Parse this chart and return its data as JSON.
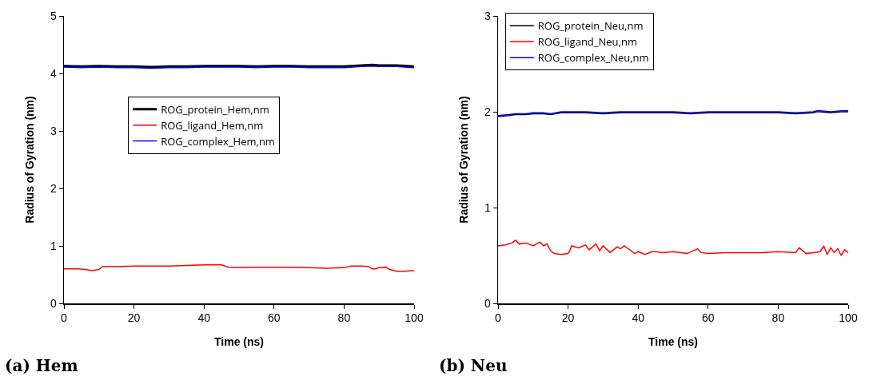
{
  "chart_data": [
    {
      "type": "line",
      "xlabel": "Time (ns)",
      "ylabel": "Radius of Gyration (nm)",
      "xlim": [
        0,
        100
      ],
      "xticks": [
        0,
        20,
        40,
        60,
        80,
        100
      ],
      "ylim": [
        0,
        5
      ],
      "yticks": [
        0,
        1,
        2,
        3,
        4,
        5
      ],
      "grid": false,
      "legend": "center",
      "marker": "none",
      "line_style": "solid",
      "annotations": [
        "(a) Hem"
      ],
      "series": [
        {
          "name": "ROG_protein_Hem,nm",
          "color": "#000000",
          "x": [
            0,
            5,
            10,
            15,
            20,
            25,
            30,
            35,
            40,
            45,
            50,
            55,
            60,
            65,
            70,
            75,
            80,
            85,
            88,
            90,
            95,
            100
          ],
          "values": [
            4.13,
            4.12,
            4.13,
            4.12,
            4.12,
            4.11,
            4.12,
            4.12,
            4.13,
            4.13,
            4.13,
            4.12,
            4.13,
            4.13,
            4.12,
            4.12,
            4.12,
            4.14,
            4.15,
            4.14,
            4.14,
            4.12
          ]
        },
        {
          "name": "ROG_ligand_Hem,nm",
          "color": "#ff0000",
          "x": [
            0,
            4,
            6,
            8,
            10,
            11,
            15,
            20,
            25,
            30,
            35,
            40,
            45,
            47,
            50,
            55,
            60,
            65,
            70,
            75,
            80,
            82,
            85,
            87,
            88,
            89,
            90,
            92,
            93,
            95,
            97,
            100
          ],
          "values": [
            0.6,
            0.6,
            0.59,
            0.57,
            0.59,
            0.64,
            0.64,
            0.65,
            0.65,
            0.65,
            0.66,
            0.67,
            0.67,
            0.63,
            0.62,
            0.63,
            0.63,
            0.63,
            0.62,
            0.61,
            0.62,
            0.65,
            0.65,
            0.64,
            0.6,
            0.6,
            0.62,
            0.63,
            0.59,
            0.56,
            0.56,
            0.57
          ]
        },
        {
          "name": "ROG_complex_Hem,nm",
          "color": "#0000ff",
          "x": [
            0,
            5,
            10,
            15,
            20,
            25,
            30,
            35,
            40,
            45,
            50,
            55,
            60,
            65,
            70,
            75,
            80,
            85,
            88,
            90,
            95,
            100
          ],
          "values": [
            4.11,
            4.1,
            4.11,
            4.1,
            4.1,
            4.09,
            4.1,
            4.1,
            4.11,
            4.11,
            4.11,
            4.1,
            4.11,
            4.11,
            4.1,
            4.1,
            4.1,
            4.12,
            4.13,
            4.12,
            4.12,
            4.1
          ]
        }
      ]
    },
    {
      "type": "line",
      "xlabel": "Time (ns)",
      "ylabel": "Radius of Gyration (nm)",
      "xlim": [
        0,
        100
      ],
      "xticks": [
        0,
        20,
        40,
        60,
        80,
        100
      ],
      "ylim": [
        0,
        3
      ],
      "yticks": [
        0,
        1,
        2,
        3
      ],
      "grid": false,
      "legend": "top left",
      "marker": "none",
      "line_style": "solid",
      "annotations": [
        "(b) Neu"
      ],
      "series": [
        {
          "name": "ROG_protein_Neu,nm",
          "color": "#000000",
          "x": [
            0,
            3,
            5,
            8,
            10,
            13,
            15,
            18,
            20,
            25,
            30,
            35,
            40,
            50,
            55,
            60,
            70,
            80,
            85,
            90,
            91,
            92,
            95,
            98,
            100
          ],
          "values": [
            1.95,
            1.96,
            1.97,
            1.97,
            1.98,
            1.98,
            1.97,
            1.99,
            1.99,
            1.99,
            1.98,
            1.99,
            1.99,
            1.99,
            1.98,
            1.99,
            1.99,
            1.99,
            1.98,
            1.99,
            2.0,
            2.0,
            1.99,
            2.0,
            2.0
          ]
        },
        {
          "name": "ROG_ligand_Neu,nm",
          "color": "#ff0000",
          "x": [
            0,
            2,
            4,
            5,
            6,
            8,
            10,
            12,
            13,
            14,
            15,
            16,
            18,
            20,
            20.5,
            21,
            23,
            25,
            26,
            28,
            29,
            30,
            32,
            34,
            35,
            36,
            38,
            39,
            40,
            42,
            44,
            45,
            47,
            50,
            54,
            57,
            58,
            60,
            65,
            70,
            75,
            80,
            85,
            86,
            88,
            90,
            92,
            93,
            94,
            95,
            96,
            97,
            98,
            99,
            100
          ],
          "values": [
            0.6,
            0.61,
            0.63,
            0.66,
            0.62,
            0.63,
            0.6,
            0.64,
            0.6,
            0.62,
            0.55,
            0.52,
            0.51,
            0.52,
            0.55,
            0.6,
            0.58,
            0.61,
            0.56,
            0.62,
            0.55,
            0.6,
            0.53,
            0.59,
            0.57,
            0.6,
            0.55,
            0.52,
            0.54,
            0.51,
            0.54,
            0.54,
            0.53,
            0.54,
            0.52,
            0.57,
            0.53,
            0.52,
            0.53,
            0.53,
            0.53,
            0.54,
            0.53,
            0.58,
            0.52,
            0.53,
            0.54,
            0.6,
            0.51,
            0.58,
            0.53,
            0.57,
            0.5,
            0.56,
            0.53
          ]
        },
        {
          "name": "ROG_complex_Neu,nm",
          "color": "#0000ff",
          "x": [
            0,
            3,
            5,
            8,
            10,
            13,
            15,
            18,
            20,
            25,
            30,
            35,
            40,
            50,
            55,
            60,
            70,
            80,
            85,
            90,
            91,
            92,
            95,
            98,
            100
          ],
          "values": [
            1.96,
            1.97,
            1.98,
            1.98,
            1.99,
            1.99,
            1.98,
            2.0,
            2.0,
            2.0,
            1.99,
            2.0,
            2.0,
            2.0,
            1.99,
            2.0,
            2.0,
            2.0,
            1.99,
            2.0,
            2.01,
            2.01,
            2.0,
            2.01,
            2.01
          ]
        }
      ]
    }
  ]
}
